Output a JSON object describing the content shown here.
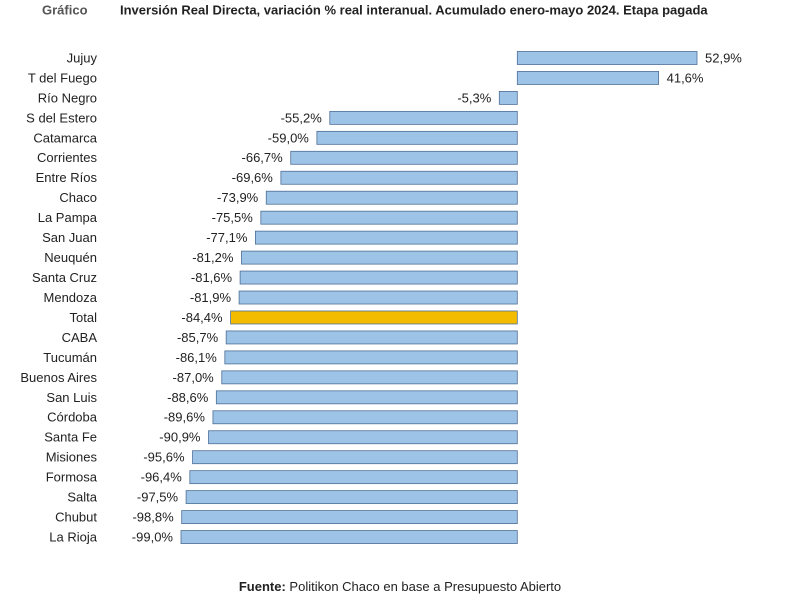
{
  "chart_data": {
    "type": "bar",
    "orientation": "horizontal",
    "label": "Gráfico",
    "title": "Inversión Real Directa, variación % real interanual. Acumulado enero-mayo 2024. Etapa pagada",
    "source_label": "Fuente:",
    "source": "Politikon Chaco en base a Presupuesto Abierto",
    "categories": [
      "Jujuy",
      "T del Fuego",
      "Río Negro",
      "S del Estero",
      "Catamarca",
      "Corrientes",
      "Entre Ríos",
      "Chaco",
      "La Pampa",
      "San Juan",
      "Neuquén",
      "Santa Cruz",
      "Mendoza",
      "Total",
      "CABA",
      "Tucumán",
      "Buenos Aires",
      "San Luis",
      "Córdoba",
      "Santa Fe",
      "Misiones",
      "Formosa",
      "Salta",
      "Chubut",
      "La Rioja"
    ],
    "values": [
      52.9,
      41.6,
      -5.3,
      -55.2,
      -59.0,
      -66.7,
      -69.6,
      -73.9,
      -75.5,
      -77.1,
      -81.2,
      -81.6,
      -81.9,
      -84.4,
      -85.7,
      -86.1,
      -87.0,
      -88.6,
      -89.6,
      -90.9,
      -95.6,
      -96.4,
      -97.5,
      -98.8,
      -99.0
    ],
    "value_labels": [
      "52,9%",
      "41,6%",
      "-5,3%",
      "-55,2%",
      "-59,0%",
      "-66,7%",
      "-69,6%",
      "-73,9%",
      "-75,5%",
      "-77,1%",
      "-81,2%",
      "-81,6%",
      "-81,9%",
      "-84,4%",
      "-85,7%",
      "-86,1%",
      "-87,0%",
      "-88,6%",
      "-89,6%",
      "-90,9%",
      "-95,6%",
      "-96,4%",
      "-97,5%",
      "-98,8%",
      "-99,0%"
    ],
    "colors": [
      "#9dc3e6",
      "#9dc3e6",
      "#9dc3e6",
      "#9dc3e6",
      "#9dc3e6",
      "#9dc3e6",
      "#9dc3e6",
      "#9dc3e6",
      "#9dc3e6",
      "#9dc3e6",
      "#9dc3e6",
      "#9dc3e6",
      "#9dc3e6",
      "#f4bc00",
      "#9dc3e6",
      "#9dc3e6",
      "#9dc3e6",
      "#9dc3e6",
      "#9dc3e6",
      "#9dc3e6",
      "#9dc3e6",
      "#9dc3e6",
      "#9dc3e6",
      "#9dc3e6",
      "#9dc3e6"
    ],
    "edge_color": "#4f6f96"
  }
}
